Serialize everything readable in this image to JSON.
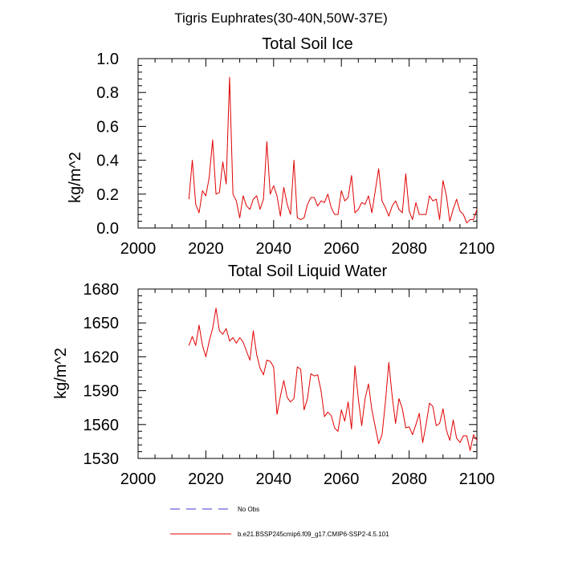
{
  "figure_title": "Tigris Euphrates(30-40N,50W-37E)",
  "legend": [
    {
      "label": "No Obs",
      "color": "#3b3bd1",
      "style": "dashed"
    },
    {
      "label": "b.e21.BSSP245cmip6.f09_g17.CMIP6-SSP2-4.5.101",
      "color": "#e00000",
      "style": "solid"
    }
  ],
  "chart_data": [
    {
      "type": "line",
      "title": "Total Soil Ice",
      "xlabel": "",
      "ylabel": "kg/m^2",
      "xlim": [
        2000,
        2100
      ],
      "ylim": [
        0,
        1
      ],
      "xticks": [
        2000,
        2020,
        2040,
        2060,
        2080,
        2100
      ],
      "yticks": [
        0,
        0.2,
        0.4,
        0.6,
        0.8,
        1.0
      ],
      "ytick_labels": [
        "0.0",
        "0.2",
        "0.4",
        "0.6",
        "0.8",
        "1.0"
      ],
      "series": [
        {
          "name": "b.e21.BSSP245cmip6.f09_g17.CMIP6-SSP2-4.5.101",
          "color": "#e00000",
          "x": [
            2015,
            2016,
            2017,
            2018,
            2019,
            2020,
            2021,
            2022,
            2023,
            2024,
            2025,
            2026,
            2027,
            2028,
            2029,
            2030,
            2031,
            2032,
            2033,
            2034,
            2035,
            2036,
            2037,
            2038,
            2039,
            2040,
            2041,
            2042,
            2043,
            2044,
            2045,
            2046,
            2047,
            2048,
            2049,
            2050,
            2051,
            2052,
            2053,
            2054,
            2055,
            2056,
            2057,
            2058,
            2059,
            2060,
            2061,
            2062,
            2063,
            2064,
            2065,
            2066,
            2067,
            2068,
            2069,
            2070,
            2071,
            2072,
            2073,
            2074,
            2075,
            2076,
            2077,
            2078,
            2079,
            2080,
            2081,
            2082,
            2083,
            2084,
            2085,
            2086,
            2087,
            2088,
            2089,
            2090,
            2091,
            2092,
            2093,
            2094,
            2095,
            2096,
            2097,
            2098,
            2099,
            2100
          ],
          "values": [
            0.17,
            0.4,
            0.14,
            0.09,
            0.22,
            0.19,
            0.3,
            0.52,
            0.2,
            0.21,
            0.39,
            0.26,
            0.89,
            0.2,
            0.16,
            0.06,
            0.19,
            0.13,
            0.11,
            0.17,
            0.19,
            0.11,
            0.17,
            0.51,
            0.2,
            0.25,
            0.19,
            0.07,
            0.24,
            0.14,
            0.08,
            0.4,
            0.06,
            0.05,
            0.06,
            0.14,
            0.18,
            0.18,
            0.13,
            0.16,
            0.15,
            0.2,
            0.12,
            0.08,
            0.08,
            0.22,
            0.16,
            0.18,
            0.31,
            0.09,
            0.11,
            0.15,
            0.14,
            0.19,
            0.09,
            0.22,
            0.35,
            0.16,
            0.12,
            0.07,
            0.13,
            0.16,
            0.11,
            0.09,
            0.32,
            0.1,
            0.05,
            0.15,
            0.08,
            0.08,
            0.08,
            0.19,
            0.16,
            0.17,
            0.05,
            0.28,
            0.19,
            0.04,
            0.11,
            0.17,
            0.1,
            0.08,
            0.03,
            0.05,
            0.05,
            0.11
          ]
        }
      ]
    },
    {
      "type": "line",
      "title": "Total Soil Liquid Water",
      "xlabel": "",
      "ylabel": "kg/m^2",
      "xlim": [
        2000,
        2100
      ],
      "ylim": [
        1530,
        1680
      ],
      "xticks": [
        2000,
        2020,
        2040,
        2060,
        2080,
        2100
      ],
      "yticks": [
        1530,
        1560,
        1590,
        1620,
        1650,
        1680
      ],
      "ytick_labels": [
        "1530",
        "1560",
        "1590",
        "1620",
        "1650",
        "1680"
      ],
      "series": [
        {
          "name": "b.e21.BSSP245cmip6.f09_g17.CMIP6-SSP2-4.5.101",
          "color": "#e00000",
          "x": [
            2015,
            2016,
            2017,
            2018,
            2019,
            2020,
            2021,
            2022,
            2023,
            2024,
            2025,
            2026,
            2027,
            2028,
            2029,
            2030,
            2031,
            2032,
            2033,
            2034,
            2035,
            2036,
            2037,
            2038,
            2039,
            2040,
            2041,
            2042,
            2043,
            2044,
            2045,
            2046,
            2047,
            2048,
            2049,
            2050,
            2051,
            2052,
            2053,
            2054,
            2055,
            2056,
            2057,
            2058,
            2059,
            2060,
            2061,
            2062,
            2063,
            2064,
            2065,
            2066,
            2067,
            2068,
            2069,
            2070,
            2071,
            2072,
            2073,
            2074,
            2075,
            2076,
            2077,
            2078,
            2079,
            2080,
            2081,
            2082,
            2083,
            2084,
            2085,
            2086,
            2087,
            2088,
            2089,
            2090,
            2091,
            2092,
            2093,
            2094,
            2095,
            2096,
            2097,
            2098,
            2099,
            2100
          ],
          "values": [
            1630,
            1638,
            1630,
            1648,
            1630,
            1620,
            1634,
            1645,
            1663,
            1643,
            1640,
            1645,
            1634,
            1637,
            1632,
            1637,
            1633,
            1625,
            1617,
            1643,
            1622,
            1610,
            1604,
            1617,
            1616,
            1611,
            1569,
            1585,
            1599,
            1584,
            1580,
            1583,
            1611,
            1609,
            1573,
            1583,
            1605,
            1603,
            1604,
            1590,
            1567,
            1571,
            1568,
            1557,
            1554,
            1573,
            1563,
            1580,
            1556,
            1612,
            1583,
            1559,
            1583,
            1596,
            1573,
            1558,
            1543,
            1551,
            1580,
            1615,
            1585,
            1561,
            1583,
            1574,
            1557,
            1558,
            1551,
            1560,
            1570,
            1544,
            1560,
            1579,
            1576,
            1559,
            1561,
            1574,
            1555,
            1546,
            1564,
            1548,
            1544,
            1550,
            1550,
            1537,
            1551,
            1546
          ]
        }
      ]
    }
  ]
}
